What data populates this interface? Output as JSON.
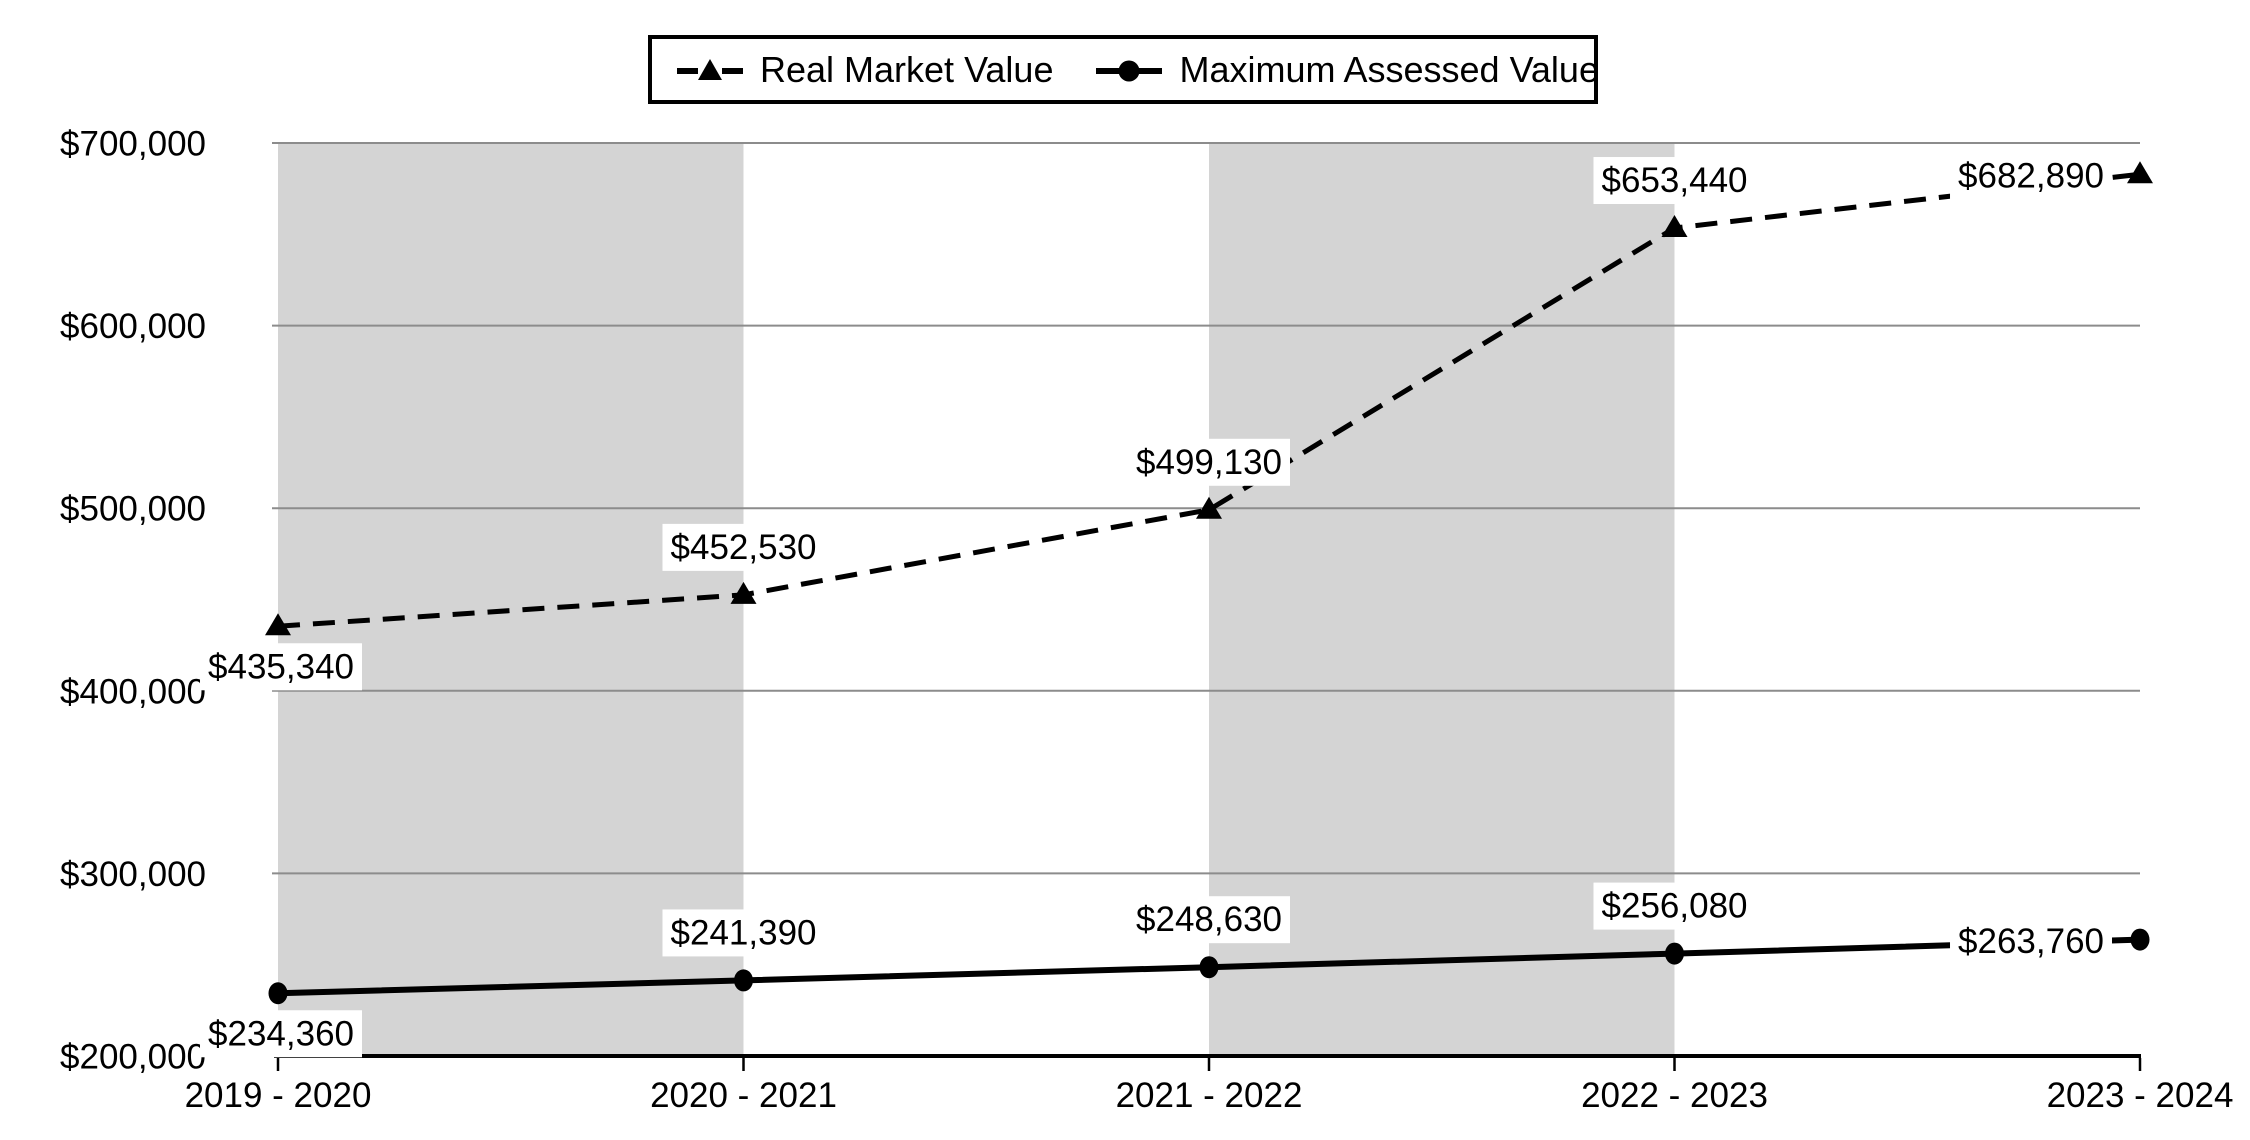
{
  "chart_data": {
    "type": "line",
    "title": "",
    "categories": [
      "2019 - 2020",
      "2020 - 2021",
      "2021 - 2022",
      "2022 - 2023",
      "2023 - 2024"
    ],
    "series": [
      {
        "name": "Real Market Value",
        "line_style": "dashed",
        "marker": "triangle",
        "values": [
          435340,
          452530,
          499130,
          653440,
          682890
        ],
        "data_labels": [
          "$435,340",
          "$452,530",
          "$499,130",
          "$653,440",
          "$682,890"
        ],
        "label_positions": [
          "below",
          "above",
          "above",
          "above",
          "left"
        ]
      },
      {
        "name": "Maximum Assessed Value",
        "line_style": "solid",
        "marker": "circle",
        "values": [
          234360,
          241390,
          248630,
          256080,
          263760
        ],
        "data_labels": [
          "$234,360",
          "$241,390",
          "$248,630",
          "$256,080",
          "$263,760"
        ],
        "label_positions": [
          "below",
          "above",
          "above",
          "above",
          "left"
        ]
      }
    ],
    "y_axis": {
      "min": 200000,
      "max": 700000,
      "step": 100000,
      "tick_labels": [
        "$200,000",
        "$300,000",
        "$400,000",
        "$500,000",
        "$600,000",
        "$700,000"
      ]
    },
    "x_axis": {
      "tick_labels": [
        "2019 - 2020",
        "2020 - 2021",
        "2021 - 2022",
        "2022 - 2023",
        "2023 - 2024"
      ]
    },
    "grid": true,
    "legend_position": "top-center",
    "plot_bands": {
      "columns": [
        0,
        2
      ],
      "color": "#d4d4d4"
    },
    "colors": {
      "series": "#000000",
      "gridline": "#8c8c8c",
      "axis": "#000000",
      "background": "#ffffff",
      "label_background": "#ffffff"
    }
  },
  "legend": {
    "items": [
      {
        "label": "Real Market Value"
      },
      {
        "label": "Maximum Assessed Value"
      }
    ]
  }
}
